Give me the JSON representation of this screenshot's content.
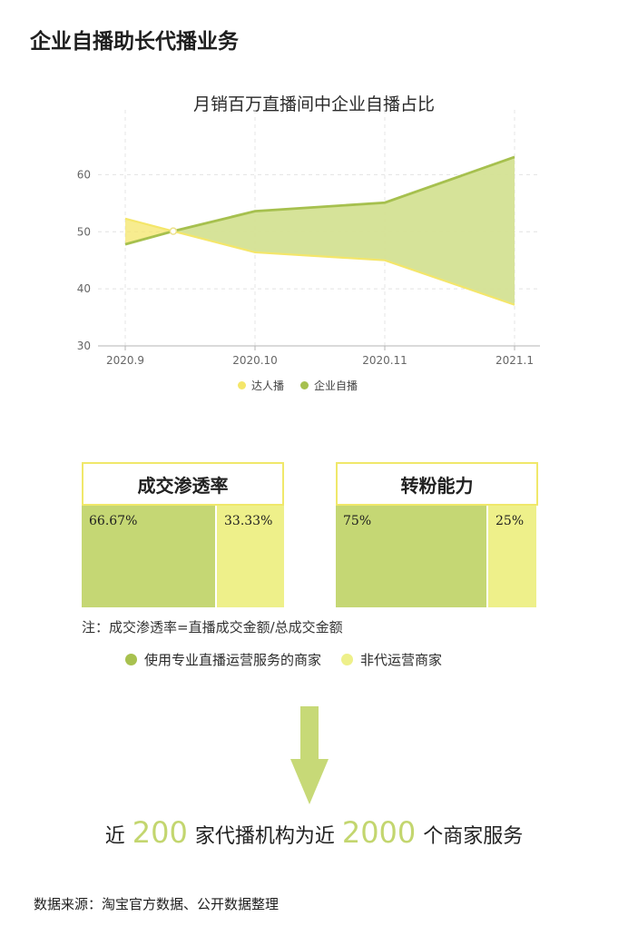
{
  "header": {
    "title": "企业自播助长代播业务"
  },
  "chart_data": {
    "type": "area",
    "title": "月销百万直播间中企业自播占比",
    "categories": [
      "2020.9",
      "2020.10",
      "2020.11",
      "2021.1"
    ],
    "y_ticks": [
      "30",
      "40",
      "50",
      "60"
    ],
    "ylim": [
      30,
      65
    ],
    "grid": true,
    "legend_position": "bottom",
    "series": [
      {
        "name": "达人播",
        "color": "#f4e66a",
        "points": [
          [
            0,
            52.3
          ],
          [
            0.37,
            50.1
          ],
          [
            1,
            46.4
          ],
          [
            2,
            45.0
          ],
          [
            3,
            37.2
          ]
        ]
      },
      {
        "name": "企业自播",
        "color": "#a6c04e",
        "points": [
          [
            0,
            47.8
          ],
          [
            0.37,
            50.1
          ],
          [
            1,
            53.6
          ],
          [
            2,
            55.1
          ],
          [
            3,
            63.1
          ]
        ]
      }
    ]
  },
  "comparison": {
    "boxes": [
      {
        "title": "成交渗透率",
        "segments": [
          {
            "label": "66.67%",
            "value": 66.67,
            "color": "#c5d774"
          },
          {
            "label": "33.33%",
            "value": 33.33,
            "color": "#eef08a"
          }
        ]
      },
      {
        "title": "转粉能力",
        "segments": [
          {
            "label": "75%",
            "value": 75,
            "color": "#c5d774"
          },
          {
            "label": "25%",
            "value": 25,
            "color": "#eef08a"
          }
        ]
      }
    ],
    "note": "注：成交渗透率=直播成交金额/总成交金额",
    "legend": [
      {
        "label": "使用专业直播运营服务的商家",
        "color": "#a8c14f"
      },
      {
        "label": "非代运营商家",
        "color": "#eef08a"
      }
    ]
  },
  "statement": {
    "prefix": "近",
    "number1": "200",
    "middle": "家代播机构为近",
    "number2": "2000",
    "suffix": "个商家服务",
    "accent_color": "#c3d66f"
  },
  "source": "数据来源：淘宝官方数据、公开数据整理",
  "colors": {
    "arrow": "#c7d977",
    "box_border": "#f0e86a"
  }
}
